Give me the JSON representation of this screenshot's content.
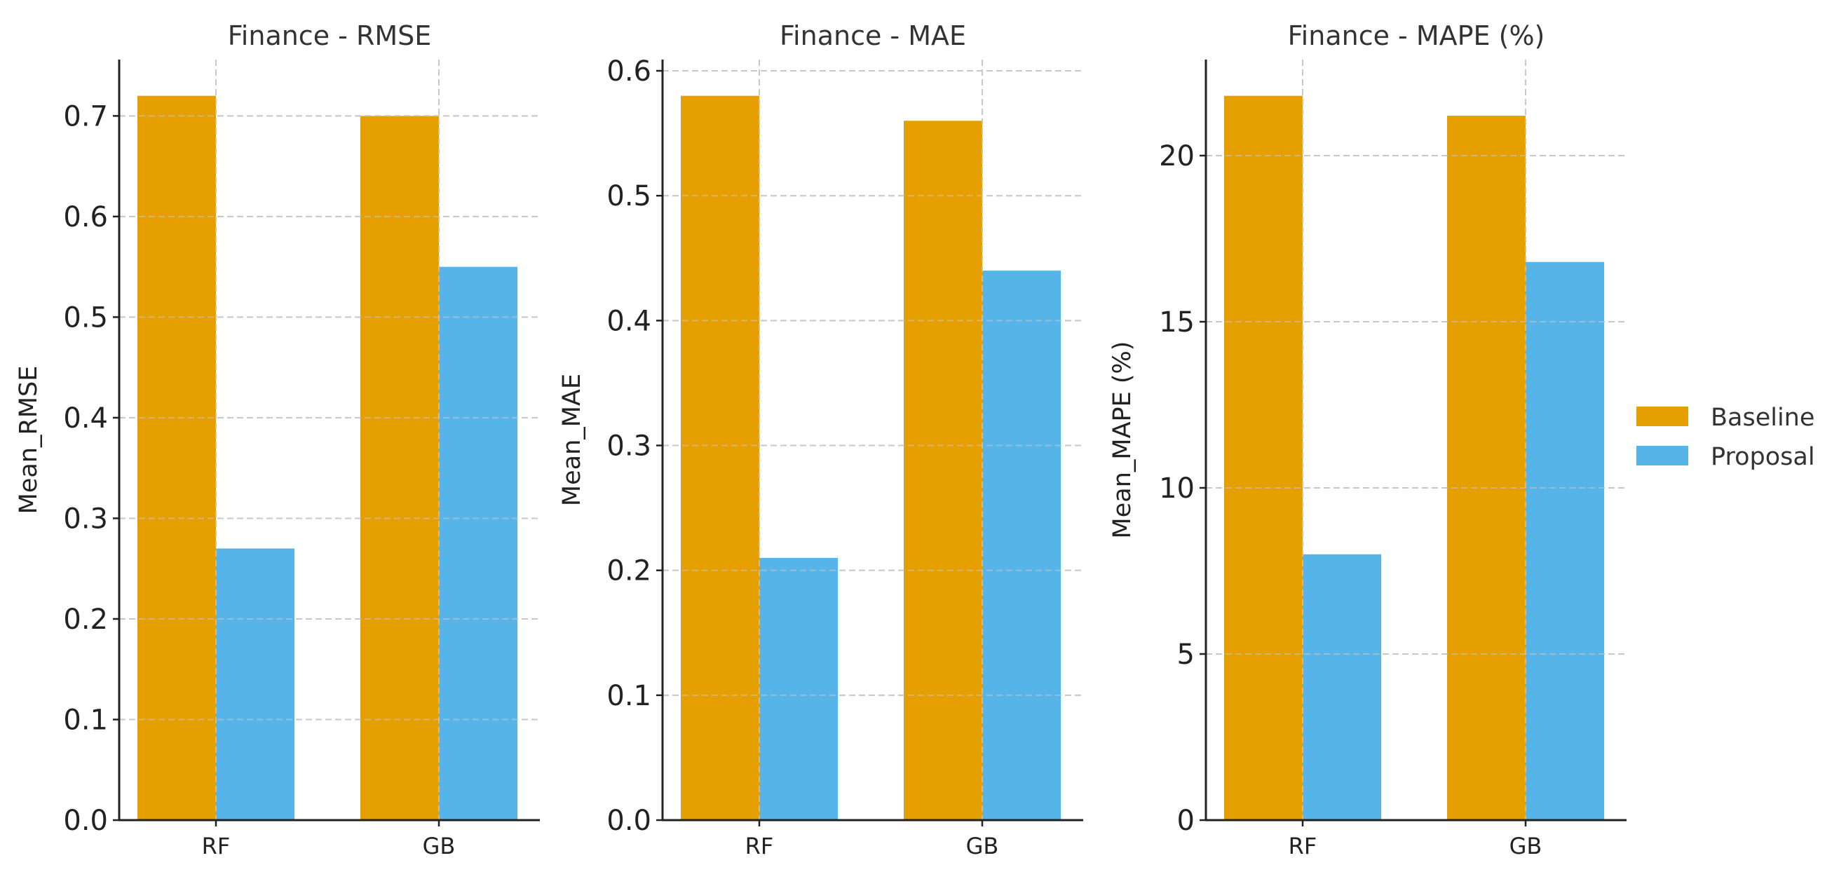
{
  "colors": {
    "baseline": "#E69F00",
    "proposal": "#56B4E9"
  },
  "legend": {
    "items": [
      "Baseline",
      "Proposal"
    ],
    "placement": "right"
  },
  "chart_data": [
    {
      "type": "bar",
      "title": "Finance - RMSE",
      "xlabel": "",
      "ylabel": "Mean_RMSE",
      "categories": [
        "RF",
        "GB"
      ],
      "series": [
        {
          "name": "Baseline",
          "values": [
            0.72,
            0.7
          ]
        },
        {
          "name": "Proposal",
          "values": [
            0.27,
            0.55
          ]
        }
      ],
      "ylim": [
        0,
        0.756
      ],
      "yticks": [
        0.0,
        0.1,
        0.2,
        0.3,
        0.4,
        0.5,
        0.6,
        0.7
      ],
      "ytick_labels": [
        "0.0",
        "0.1",
        "0.2",
        "0.3",
        "0.4",
        "0.5",
        "0.6",
        "0.7"
      ],
      "grid": true
    },
    {
      "type": "bar",
      "title": "Finance - MAE",
      "xlabel": "",
      "ylabel": "Mean_MAE",
      "categories": [
        "RF",
        "GB"
      ],
      "series": [
        {
          "name": "Baseline",
          "values": [
            0.58,
            0.56
          ]
        },
        {
          "name": "Proposal",
          "values": [
            0.21,
            0.44
          ]
        }
      ],
      "ylim": [
        0,
        0.609
      ],
      "yticks": [
        0.0,
        0.1,
        0.2,
        0.3,
        0.4,
        0.5,
        0.6
      ],
      "ytick_labels": [
        "0.0",
        "0.1",
        "0.2",
        "0.3",
        "0.4",
        "0.5",
        "0.6"
      ],
      "grid": true
    },
    {
      "type": "bar",
      "title": "Finance - MAPE (%)",
      "xlabel": "",
      "ylabel": "Mean_MAPE (%)",
      "categories": [
        "RF",
        "GB"
      ],
      "series": [
        {
          "name": "Baseline",
          "values": [
            21.8,
            21.2
          ]
        },
        {
          "name": "Proposal",
          "values": [
            8.0,
            16.8
          ]
        }
      ],
      "ylim": [
        0,
        22.89
      ],
      "yticks": [
        0,
        5,
        10,
        15,
        20
      ],
      "ytick_labels": [
        "0",
        "5",
        "10",
        "15",
        "20"
      ],
      "grid": true
    }
  ]
}
